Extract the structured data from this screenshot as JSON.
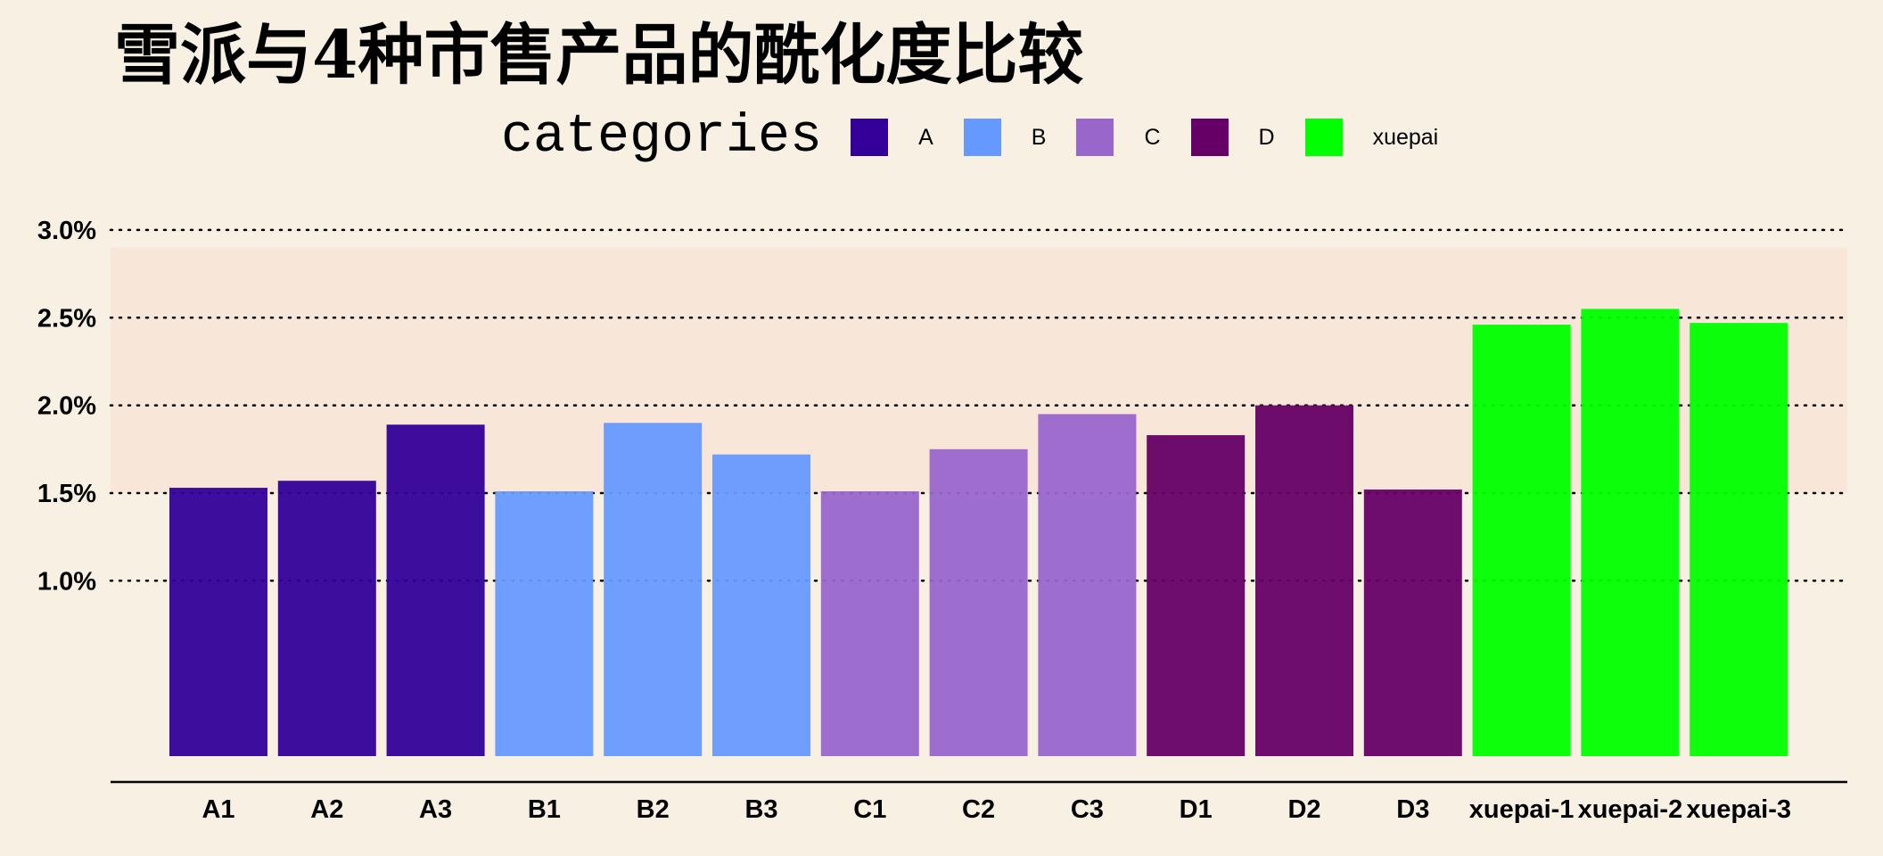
{
  "chart_data": {
    "type": "bar",
    "title": "雪派与4种市售产品的酰化度比较",
    "legend_title": "categories",
    "legend_position": "top",
    "legend": [
      {
        "name": "A",
        "color": "#330099"
      },
      {
        "name": "B",
        "color": "#6699ff"
      },
      {
        "name": "C",
        "color": "#9966cc"
      },
      {
        "name": "D",
        "color": "#660066"
      },
      {
        "name": "xuepai",
        "color": "#00ff00"
      }
    ],
    "categories": [
      "A1",
      "A2",
      "A3",
      "B1",
      "B2",
      "B3",
      "C1",
      "C2",
      "C3",
      "D1",
      "D2",
      "D3",
      "xuepai-1",
      "xuepai-2",
      "xuepai-3"
    ],
    "groups": [
      "A",
      "A",
      "A",
      "B",
      "B",
      "B",
      "C",
      "C",
      "C",
      "D",
      "D",
      "D",
      "xuepai",
      "xuepai",
      "xuepai"
    ],
    "values": [
      1.53,
      1.57,
      1.89,
      1.51,
      1.9,
      1.72,
      1.51,
      1.75,
      1.95,
      1.83,
      2.0,
      1.52,
      2.46,
      2.55,
      2.47
    ],
    "ylim": [
      0,
      3.0
    ],
    "yticks": [
      1.0,
      1.5,
      2.0,
      2.5,
      3.0
    ],
    "ytick_labels": [
      "1.0%",
      "1.5%",
      "2.0%",
      "2.5%",
      "3.0%"
    ],
    "highlight_band": [
      1.5,
      2.9
    ],
    "grid": "horizontal-dotted",
    "xlabel": "",
    "ylabel": ""
  }
}
